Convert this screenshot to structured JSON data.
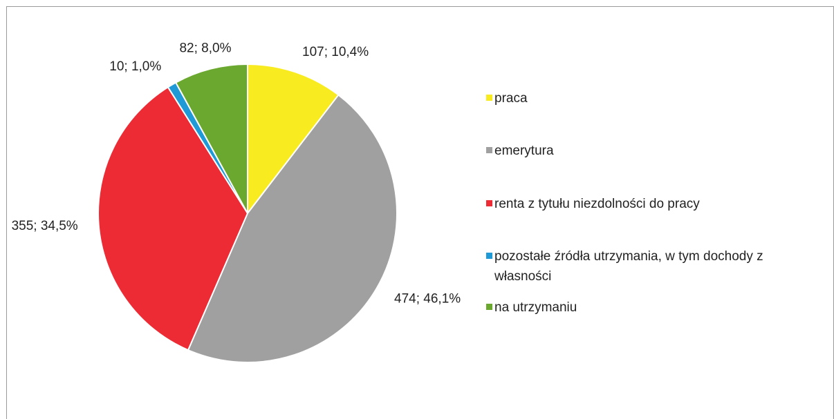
{
  "chart_data": {
    "type": "pie",
    "categories": [
      "praca",
      "emerytura",
      "renta z tytułu niezdolności do pracy",
      "pozostałe źródła utrzymania, w tym dochody z własności",
      "na utrzymaniu"
    ],
    "values": [
      107,
      474,
      355,
      10,
      82
    ],
    "value_labels": [
      "107; 10,4%",
      "474; 46,1%",
      "355; 34,5%",
      "10; 1,0%",
      "82; 8,0%"
    ],
    "colors": [
      "#f8eb1f",
      "#a0a0a0",
      "#ec2b35",
      "#1f9ad6",
      "#6ba82f"
    ],
    "legend": "right"
  }
}
